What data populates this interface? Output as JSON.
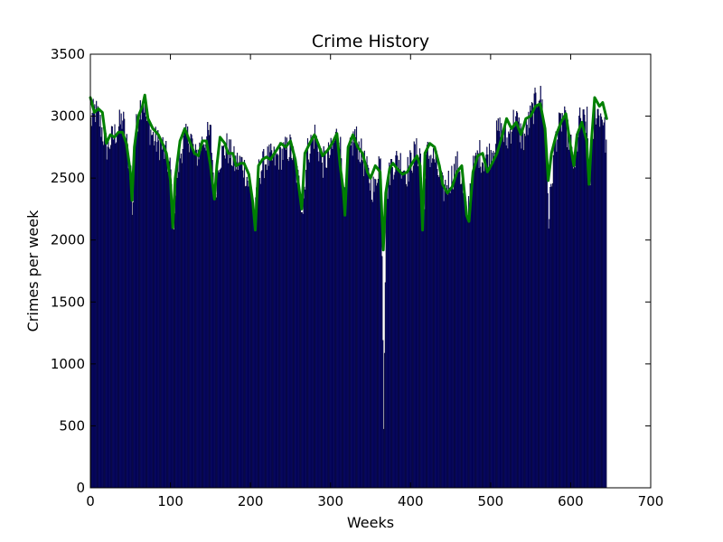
{
  "chart_data": {
    "type": "bar",
    "title": "Crime History",
    "xlabel": "Weeks",
    "ylabel": "Crimes per week",
    "xlim": [
      0,
      700
    ],
    "ylim": [
      0,
      3500
    ],
    "xticks": [
      "0",
      "100",
      "200",
      "300",
      "400",
      "500",
      "600",
      "700"
    ],
    "yticks": [
      "0",
      "500",
      "1000",
      "1500",
      "2000",
      "2500",
      "3000",
      "3500"
    ],
    "grid": false,
    "bar_color": "#000080",
    "line_color": "#008000",
    "week_count": 645,
    "series": [
      {
        "type": "bar",
        "values_description": "weekly crime counts",
        "keypoints": [
          [
            0,
            2950
          ],
          [
            5,
            3050
          ],
          [
            10,
            2980
          ],
          [
            20,
            2750
          ],
          [
            30,
            2850
          ],
          [
            40,
            2980
          ],
          [
            50,
            2550
          ],
          [
            52,
            2150
          ],
          [
            55,
            2800
          ],
          [
            60,
            3050
          ],
          [
            66,
            3150
          ],
          [
            70,
            2950
          ],
          [
            80,
            2800
          ],
          [
            90,
            2750
          ],
          [
            100,
            2550
          ],
          [
            103,
            2100
          ],
          [
            108,
            2550
          ],
          [
            115,
            2780
          ],
          [
            125,
            2850
          ],
          [
            130,
            2650
          ],
          [
            140,
            2800
          ],
          [
            150,
            2850
          ],
          [
            155,
            2350
          ],
          [
            160,
            2650
          ],
          [
            170,
            2750
          ],
          [
            180,
            2620
          ],
          [
            190,
            2620
          ],
          [
            200,
            2400
          ],
          [
            205,
            2150
          ],
          [
            210,
            2550
          ],
          [
            220,
            2650
          ],
          [
            230,
            2650
          ],
          [
            240,
            2700
          ],
          [
            250,
            2750
          ],
          [
            260,
            2450
          ],
          [
            265,
            2250
          ],
          [
            270,
            2700
          ],
          [
            280,
            2850
          ],
          [
            290,
            2620
          ],
          [
            300,
            2700
          ],
          [
            310,
            2900
          ],
          [
            315,
            2500
          ],
          [
            318,
            2200
          ],
          [
            322,
            2650
          ],
          [
            330,
            2850
          ],
          [
            340,
            2650
          ],
          [
            350,
            2450
          ],
          [
            355,
            2400
          ],
          [
            360,
            2650
          ],
          [
            363,
            2600
          ],
          [
            366,
            580
          ],
          [
            369,
            2350
          ],
          [
            375,
            2600
          ],
          [
            385,
            2650
          ],
          [
            395,
            2550
          ],
          [
            405,
            2700
          ],
          [
            412,
            2700
          ],
          [
            415,
            2150
          ],
          [
            420,
            2700
          ],
          [
            430,
            2650
          ],
          [
            440,
            2400
          ],
          [
            450,
            2500
          ],
          [
            460,
            2620
          ],
          [
            470,
            2150
          ],
          [
            475,
            2500
          ],
          [
            485,
            2700
          ],
          [
            490,
            2650
          ],
          [
            500,
            2700
          ],
          [
            510,
            2900
          ],
          [
            520,
            2800
          ],
          [
            530,
            3000
          ],
          [
            540,
            2800
          ],
          [
            550,
            3000
          ],
          [
            560,
            3200
          ],
          [
            565,
            3050
          ],
          [
            570,
            2650
          ],
          [
            572,
            2150
          ],
          [
            580,
            2800
          ],
          [
            590,
            3000
          ],
          [
            600,
            2750
          ],
          [
            605,
            2550
          ],
          [
            610,
            2950
          ],
          [
            620,
            2950
          ],
          [
            623,
            2450
          ],
          [
            630,
            3050
          ],
          [
            640,
            3000
          ],
          [
            645,
            2700
          ]
        ]
      },
      {
        "type": "line",
        "values_description": "smoothed trend",
        "keypoints": [
          [
            0,
            3150
          ],
          [
            5,
            3030
          ],
          [
            10,
            3060
          ],
          [
            15,
            3030
          ],
          [
            20,
            2780
          ],
          [
            25,
            2850
          ],
          [
            30,
            2830
          ],
          [
            35,
            2870
          ],
          [
            40,
            2870
          ],
          [
            45,
            2780
          ],
          [
            50,
            2550
          ],
          [
            52,
            2320
          ],
          [
            55,
            2750
          ],
          [
            60,
            3000
          ],
          [
            65,
            3080
          ],
          [
            68,
            3170
          ],
          [
            72,
            2980
          ],
          [
            78,
            2900
          ],
          [
            85,
            2850
          ],
          [
            90,
            2780
          ],
          [
            95,
            2700
          ],
          [
            100,
            2480
          ],
          [
            103,
            2100
          ],
          [
            106,
            2500
          ],
          [
            112,
            2800
          ],
          [
            118,
            2900
          ],
          [
            125,
            2780
          ],
          [
            130,
            2700
          ],
          [
            135,
            2680
          ],
          [
            140,
            2800
          ],
          [
            145,
            2800
          ],
          [
            150,
            2600
          ],
          [
            155,
            2330
          ],
          [
            158,
            2600
          ],
          [
            162,
            2830
          ],
          [
            168,
            2780
          ],
          [
            172,
            2700
          ],
          [
            178,
            2700
          ],
          [
            182,
            2600
          ],
          [
            188,
            2620
          ],
          [
            192,
            2620
          ],
          [
            198,
            2530
          ],
          [
            203,
            2300
          ],
          [
            206,
            2080
          ],
          [
            210,
            2600
          ],
          [
            215,
            2650
          ],
          [
            220,
            2670
          ],
          [
            225,
            2650
          ],
          [
            232,
            2720
          ],
          [
            238,
            2780
          ],
          [
            244,
            2750
          ],
          [
            250,
            2800
          ],
          [
            256,
            2650
          ],
          [
            260,
            2450
          ],
          [
            264,
            2250
          ],
          [
            268,
            2700
          ],
          [
            274,
            2780
          ],
          [
            280,
            2850
          ],
          [
            285,
            2770
          ],
          [
            290,
            2680
          ],
          [
            296,
            2720
          ],
          [
            302,
            2780
          ],
          [
            308,
            2860
          ],
          [
            312,
            2600
          ],
          [
            316,
            2400
          ],
          [
            318,
            2200
          ],
          [
            322,
            2750
          ],
          [
            328,
            2850
          ],
          [
            334,
            2750
          ],
          [
            340,
            2700
          ],
          [
            346,
            2550
          ],
          [
            350,
            2500
          ],
          [
            356,
            2600
          ],
          [
            362,
            2550
          ],
          [
            366,
            1920
          ],
          [
            369,
            2380
          ],
          [
            374,
            2580
          ],
          [
            378,
            2620
          ],
          [
            384,
            2570
          ],
          [
            390,
            2530
          ],
          [
            396,
            2550
          ],
          [
            402,
            2620
          ],
          [
            408,
            2680
          ],
          [
            412,
            2600
          ],
          [
            415,
            2080
          ],
          [
            418,
            2700
          ],
          [
            424,
            2780
          ],
          [
            430,
            2750
          ],
          [
            436,
            2600
          ],
          [
            440,
            2450
          ],
          [
            446,
            2380
          ],
          [
            452,
            2430
          ],
          [
            458,
            2550
          ],
          [
            464,
            2600
          ],
          [
            470,
            2200
          ],
          [
            473,
            2150
          ],
          [
            478,
            2550
          ],
          [
            484,
            2680
          ],
          [
            490,
            2700
          ],
          [
            496,
            2550
          ],
          [
            502,
            2620
          ],
          [
            508,
            2700
          ],
          [
            514,
            2830
          ],
          [
            520,
            2980
          ],
          [
            526,
            2900
          ],
          [
            532,
            2950
          ],
          [
            538,
            2850
          ],
          [
            544,
            2980
          ],
          [
            550,
            3000
          ],
          [
            556,
            3080
          ],
          [
            562,
            3100
          ],
          [
            568,
            2900
          ],
          [
            572,
            2480
          ],
          [
            576,
            2700
          ],
          [
            582,
            2850
          ],
          [
            588,
            2950
          ],
          [
            594,
            3020
          ],
          [
            600,
            2750
          ],
          [
            604,
            2600
          ],
          [
            608,
            2850
          ],
          [
            614,
            2950
          ],
          [
            620,
            2800
          ],
          [
            623,
            2450
          ],
          [
            626,
            2800
          ],
          [
            630,
            3150
          ],
          [
            636,
            3080
          ],
          [
            640,
            3110
          ],
          [
            645,
            2980
          ]
        ]
      }
    ]
  }
}
